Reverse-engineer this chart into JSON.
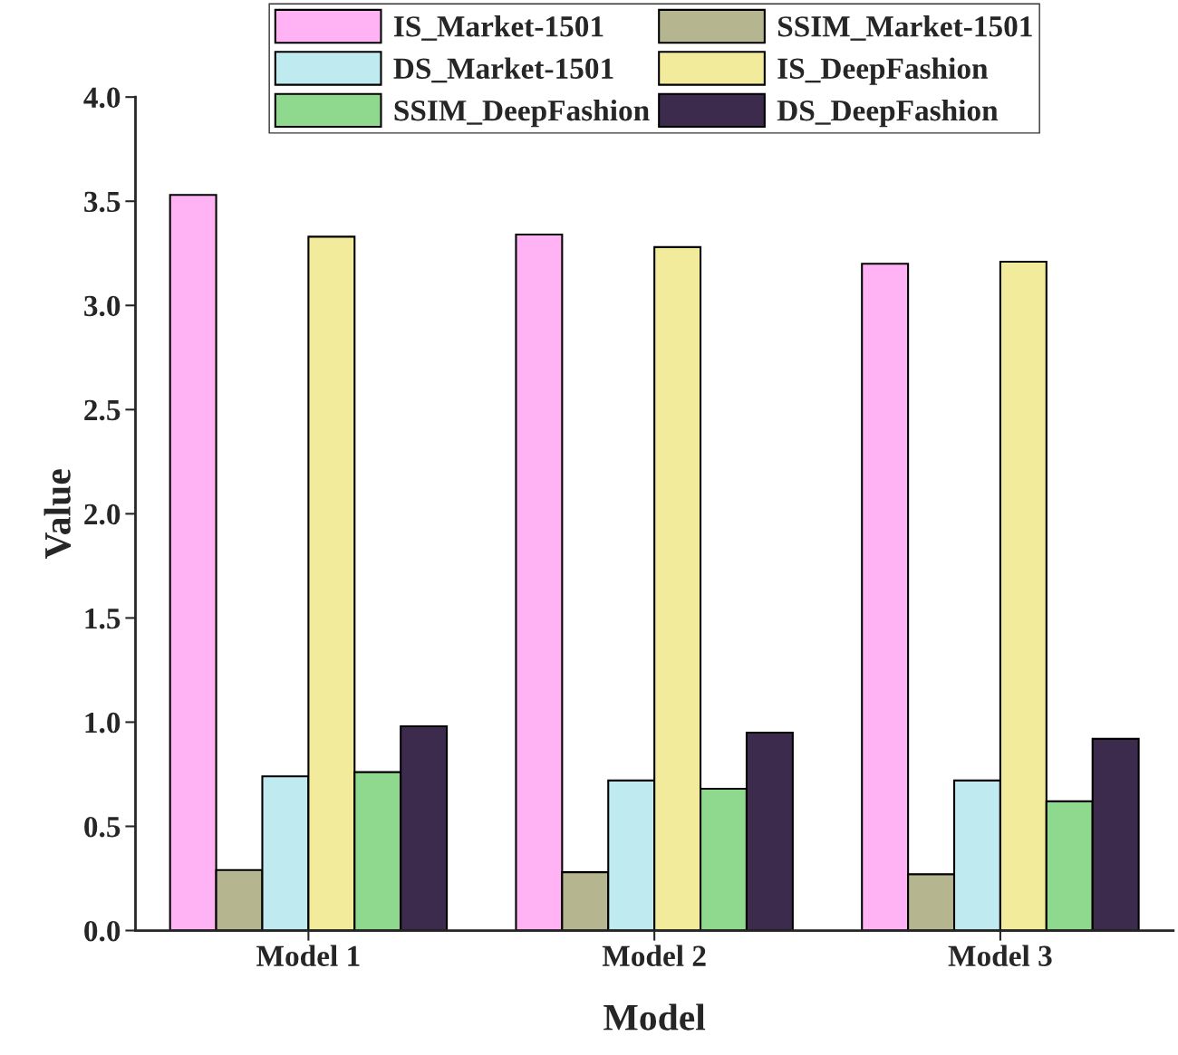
{
  "chart_data": {
    "type": "bar",
    "xlabel": "Model",
    "ylabel": "Value",
    "categories": [
      "Model 1",
      "Model 2",
      "Model 3"
    ],
    "series": [
      {
        "name": "IS_Market-1501",
        "color": "#ffb3f5",
        "values": [
          3.53,
          3.34,
          3.2
        ]
      },
      {
        "name": "SSIM_Market-1501",
        "color": "#b5b58f",
        "values": [
          0.29,
          0.28,
          0.27
        ]
      },
      {
        "name": "DS_Market-1501",
        "color": "#bfeaf0",
        "values": [
          0.74,
          0.72,
          0.72
        ]
      },
      {
        "name": "IS_DeepFashion",
        "color": "#f2eb9c",
        "values": [
          3.33,
          3.28,
          3.21
        ]
      },
      {
        "name": "SSIM_DeepFashion",
        "color": "#8fd98f",
        "values": [
          0.76,
          0.68,
          0.62
        ]
      },
      {
        "name": "DS_DeepFashion",
        "color": "#3d2b4d",
        "values": [
          0.98,
          0.95,
          0.92
        ]
      }
    ],
    "ylim": [
      0,
      4.0
    ],
    "yticks": [
      {
        "value": 0,
        "label": "0.0"
      },
      0.5,
      {
        "value": 1,
        "label": "1.0"
      },
      1.5,
      {
        "value": 2,
        "label": "2.0"
      },
      2.5,
      {
        "value": 3,
        "label": "3.0"
      },
      3.5,
      {
        "value": 4,
        "label": "4.0"
      }
    ],
    "legend": "top",
    "grid": false
  }
}
